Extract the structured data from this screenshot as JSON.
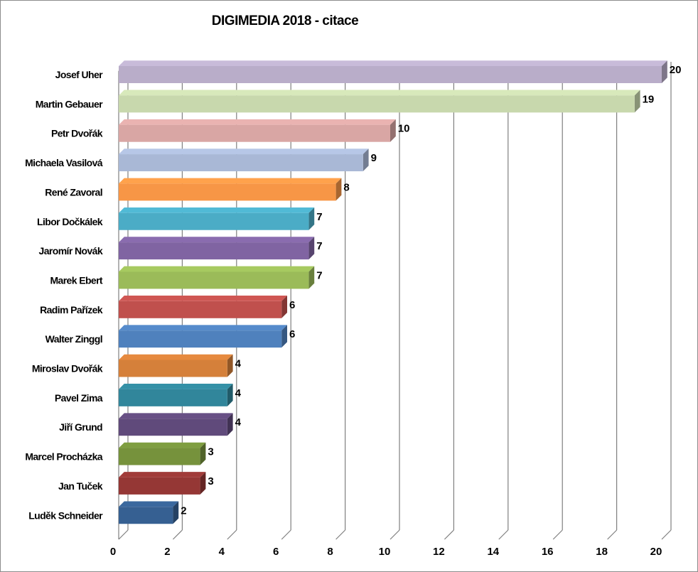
{
  "chart_data": {
    "type": "bar",
    "orientation": "horizontal",
    "style": "3d",
    "title": "DIGIMEDIA 2018 - citace",
    "categories": [
      "Josef Uher",
      "Martin Gebauer",
      "Petr Dvořák",
      "Michaela Vasilová",
      "René Zavoral",
      "Libor Dočkálek",
      "Jaromír Novák",
      "Marek Ebert",
      "Radim Pařízek",
      "Walter Zinggl",
      "Miroslav Dvořák",
      "Pavel Zima",
      "Jiří Grund",
      "Marcel Procházka",
      "Jan Tuček",
      "Luděk Schneider"
    ],
    "values": [
      20,
      19,
      10,
      9,
      8,
      7,
      7,
      7,
      6,
      6,
      4,
      4,
      4,
      3,
      3,
      2
    ],
    "colors": [
      "#b9adc9",
      "#c8d8ad",
      "#d9a6a4",
      "#a9b8d6",
      "#f79646",
      "#4bacc6",
      "#8064a2",
      "#9bbb59",
      "#c0504d",
      "#4f81bd",
      "#d5803a",
      "#31869b",
      "#604a7b",
      "#76923c",
      "#953735",
      "#366092"
    ],
    "xlim": [
      0,
      20
    ],
    "xticks": [
      0,
      2,
      4,
      6,
      8,
      10,
      12,
      14,
      16,
      18,
      20
    ],
    "grid": true,
    "legend": "none",
    "xlabel": "",
    "ylabel": ""
  }
}
